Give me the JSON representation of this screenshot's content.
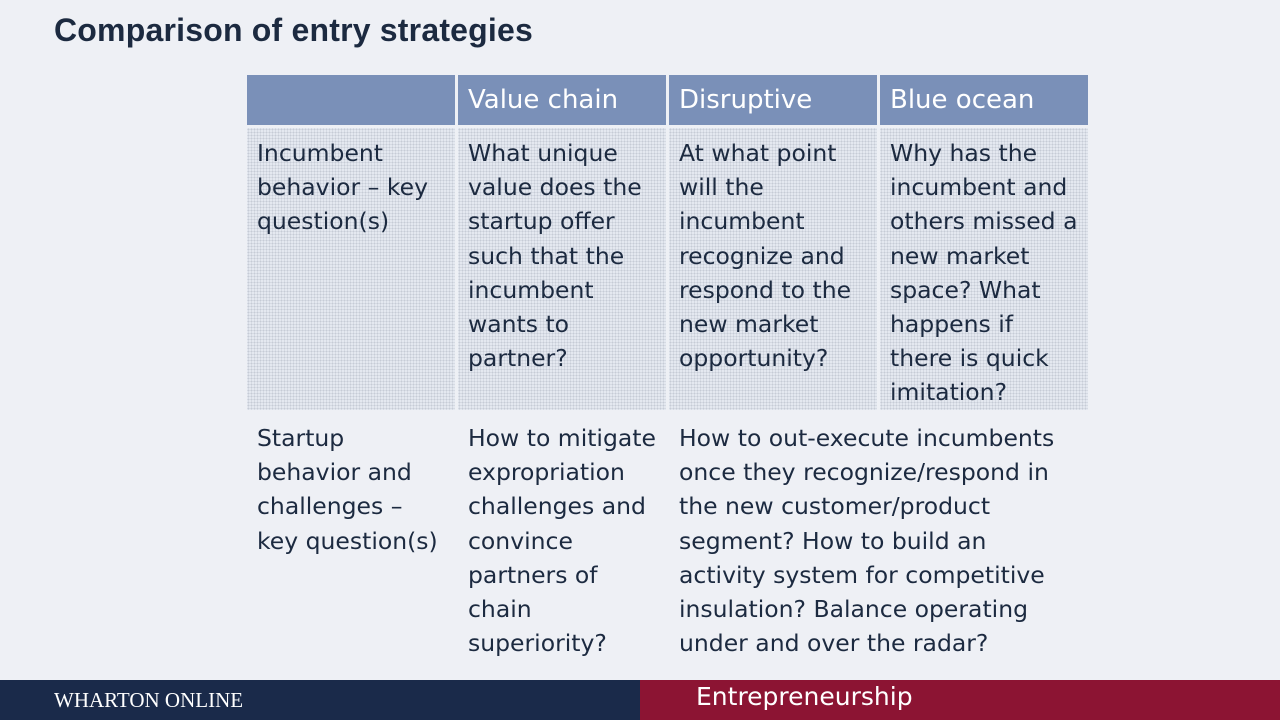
{
  "slide": {
    "title": "Comparison of entry strategies"
  },
  "table": {
    "headers": [
      "",
      "Value chain",
      "Disruptive",
      "Blue ocean"
    ],
    "rows": [
      {
        "label": "Incumbent behavior – key question(s)",
        "value_chain": "What unique value does the startup offer such that the incumbent wants to partner?",
        "disruptive": "At what point will the incumbent recognize and respond to the new market opportunity?",
        "blue_ocean": "Why has the incumbent and others missed a new market space? What happens if there is quick imitation?"
      },
      {
        "label": "Startup behavior and challenges – key question(s)",
        "value_chain": "How to mitigate expropriation challenges and convince partners of chain superiority?",
        "disruptive_blue_ocean": "How to out-execute incumbents once they recognize/respond in the new customer/product segment? How to build an activity system for competitive insulation? Balance operating under and over the radar?"
      }
    ]
  },
  "footer": {
    "left": "WHARTON ONLINE",
    "right": "Entrepreneurship"
  }
}
